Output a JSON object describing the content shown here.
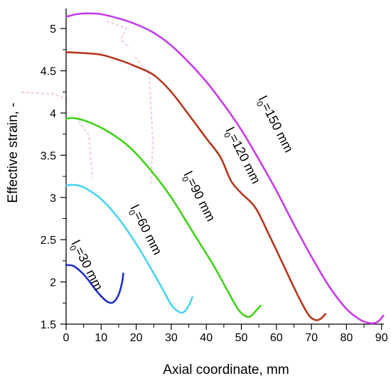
{
  "chart_data": {
    "type": "line",
    "title": "",
    "xlabel": "Axial coordinate, mm",
    "ylabel": "Effective strain, -",
    "xlim": [
      0,
      92
    ],
    "ylim": [
      1.5,
      5.2
    ],
    "x_ticks": [
      0,
      10,
      20,
      30,
      40,
      50,
      60,
      70,
      80,
      90
    ],
    "y_ticks": [
      1.5,
      2,
      2.5,
      3,
      3.5,
      4,
      4.5,
      5
    ],
    "x_tick_labels": [
      "0",
      "10",
      "20",
      "30",
      "40",
      "50",
      "60",
      "70",
      "80",
      "90"
    ],
    "y_tick_labels": [
      "1.5",
      "2",
      "2.5",
      "3",
      "3.5",
      "4",
      "4.5",
      "5"
    ],
    "grid": false,
    "legend": "none",
    "series": [
      {
        "name": "l0=30 mm",
        "label": "l0=30 mm",
        "color": "#1f2fc8",
        "points": [
          [
            0,
            2.2
          ],
          [
            2,
            2.19
          ],
          [
            4,
            2.13
          ],
          [
            6,
            2.04
          ],
          [
            8,
            1.93
          ],
          [
            10,
            1.83
          ],
          [
            12,
            1.76
          ],
          [
            13.5,
            1.76
          ],
          [
            15,
            1.85
          ],
          [
            16,
            2.0
          ],
          [
            16.3,
            2.1
          ]
        ]
      },
      {
        "name": "l0=60 mm",
        "label": "l0=60 mm",
        "color": "#4ad3f0",
        "points": [
          [
            0,
            3.14
          ],
          [
            2,
            3.15
          ],
          [
            5,
            3.12
          ],
          [
            10,
            2.98
          ],
          [
            15,
            2.75
          ],
          [
            20,
            2.45
          ],
          [
            25,
            2.1
          ],
          [
            28,
            1.88
          ],
          [
            30,
            1.73
          ],
          [
            32,
            1.65
          ],
          [
            33.5,
            1.64
          ],
          [
            35,
            1.72
          ],
          [
            36,
            1.82
          ]
        ]
      },
      {
        "name": "l0=90 mm",
        "label": "l0=90 mm",
        "color": "#3fd11a",
        "points": [
          [
            0,
            3.93
          ],
          [
            2,
            3.94
          ],
          [
            6,
            3.9
          ],
          [
            12,
            3.78
          ],
          [
            18,
            3.6
          ],
          [
            24,
            3.33
          ],
          [
            30,
            3.0
          ],
          [
            36,
            2.6
          ],
          [
            42,
            2.2
          ],
          [
            46,
            1.9
          ],
          [
            49,
            1.68
          ],
          [
            51,
            1.6
          ],
          [
            52.5,
            1.59
          ],
          [
            54,
            1.65
          ],
          [
            55.5,
            1.72
          ]
        ]
      },
      {
        "name": "l0=120 mm",
        "label": "l0=120 mm",
        "color": "#b5361b",
        "points": [
          [
            0,
            4.72
          ],
          [
            5,
            4.71
          ],
          [
            10,
            4.69
          ],
          [
            15,
            4.63
          ],
          [
            20,
            4.55
          ],
          [
            25,
            4.45
          ],
          [
            30,
            4.25
          ],
          [
            35,
            3.98
          ],
          [
            40,
            3.7
          ],
          [
            44,
            3.48
          ],
          [
            47,
            3.2
          ],
          [
            50,
            3.05
          ],
          [
            54,
            2.88
          ],
          [
            58,
            2.55
          ],
          [
            62,
            2.2
          ],
          [
            66,
            1.85
          ],
          [
            69,
            1.62
          ],
          [
            71,
            1.55
          ],
          [
            72.5,
            1.56
          ],
          [
            74,
            1.62
          ]
        ]
      },
      {
        "name": "l0=150 mm",
        "label": "l0=150 mm",
        "color": "#c53ce8",
        "points": [
          [
            0,
            5.14
          ],
          [
            3,
            5.17
          ],
          [
            6,
            5.18
          ],
          [
            10,
            5.17
          ],
          [
            15,
            5.12
          ],
          [
            20,
            5.05
          ],
          [
            25,
            4.95
          ],
          [
            30,
            4.8
          ],
          [
            35,
            4.6
          ],
          [
            40,
            4.37
          ],
          [
            45,
            4.1
          ],
          [
            50,
            3.8
          ],
          [
            55,
            3.45
          ],
          [
            60,
            3.08
          ],
          [
            65,
            2.68
          ],
          [
            70,
            2.3
          ],
          [
            75,
            1.95
          ],
          [
            80,
            1.68
          ],
          [
            84,
            1.55
          ],
          [
            87,
            1.51
          ],
          [
            89,
            1.53
          ],
          [
            90.5,
            1.6
          ]
        ]
      }
    ]
  }
}
